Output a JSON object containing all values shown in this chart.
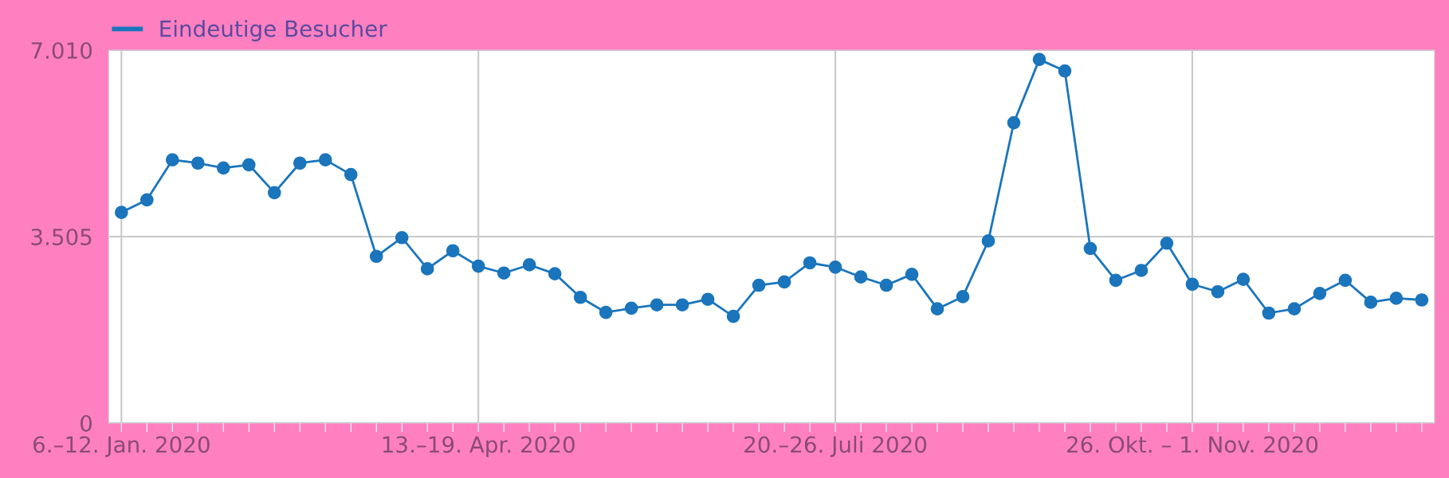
{
  "chart_data": {
    "type": "line",
    "categories": [
      "6.–12. Jan. 2020",
      null,
      null,
      null,
      null,
      null,
      null,
      null,
      null,
      null,
      null,
      null,
      null,
      null,
      "13.–19. Apr. 2020",
      null,
      null,
      null,
      null,
      null,
      null,
      null,
      null,
      null,
      null,
      null,
      null,
      null,
      "20.–26. Juli 2020",
      null,
      null,
      null,
      null,
      null,
      null,
      null,
      null,
      null,
      null,
      null,
      null,
      null,
      "26. Okt. – 1. Nov. 2020",
      null,
      null,
      null,
      null,
      null,
      null,
      null,
      null,
      null
    ],
    "series": [
      {
        "name": "Eindeutige Besucher",
        "color": "#1a75bc",
        "values": [
          3961,
          4196,
          4948,
          4887,
          4794,
          4856,
          4331,
          4887,
          4948,
          4671,
          3134,
          3486,
          2900,
          3239,
          2949,
          2820,
          2974,
          2807,
          2363,
          2079,
          2160,
          2221,
          2221,
          2326,
          2005,
          2591,
          2653,
          3011,
          2931,
          2746,
          2591,
          2795,
          2147,
          2375,
          3424,
          5646,
          6836,
          6620,
          3282,
          2684,
          2869,
          3381,
          2610,
          2468,
          2702,
          2067,
          2147,
          2437,
          2684,
          2271,
          2345,
          2314
        ]
      }
    ],
    "ylim": [
      0,
      7010
    ],
    "yticks": [
      0,
      {
        "value": 3505,
        "label": "3.505"
      },
      {
        "value": 7010,
        "label": "7.010"
      }
    ],
    "grid": true,
    "legend": "top left",
    "marker": "circle",
    "line_style": "solid"
  }
}
